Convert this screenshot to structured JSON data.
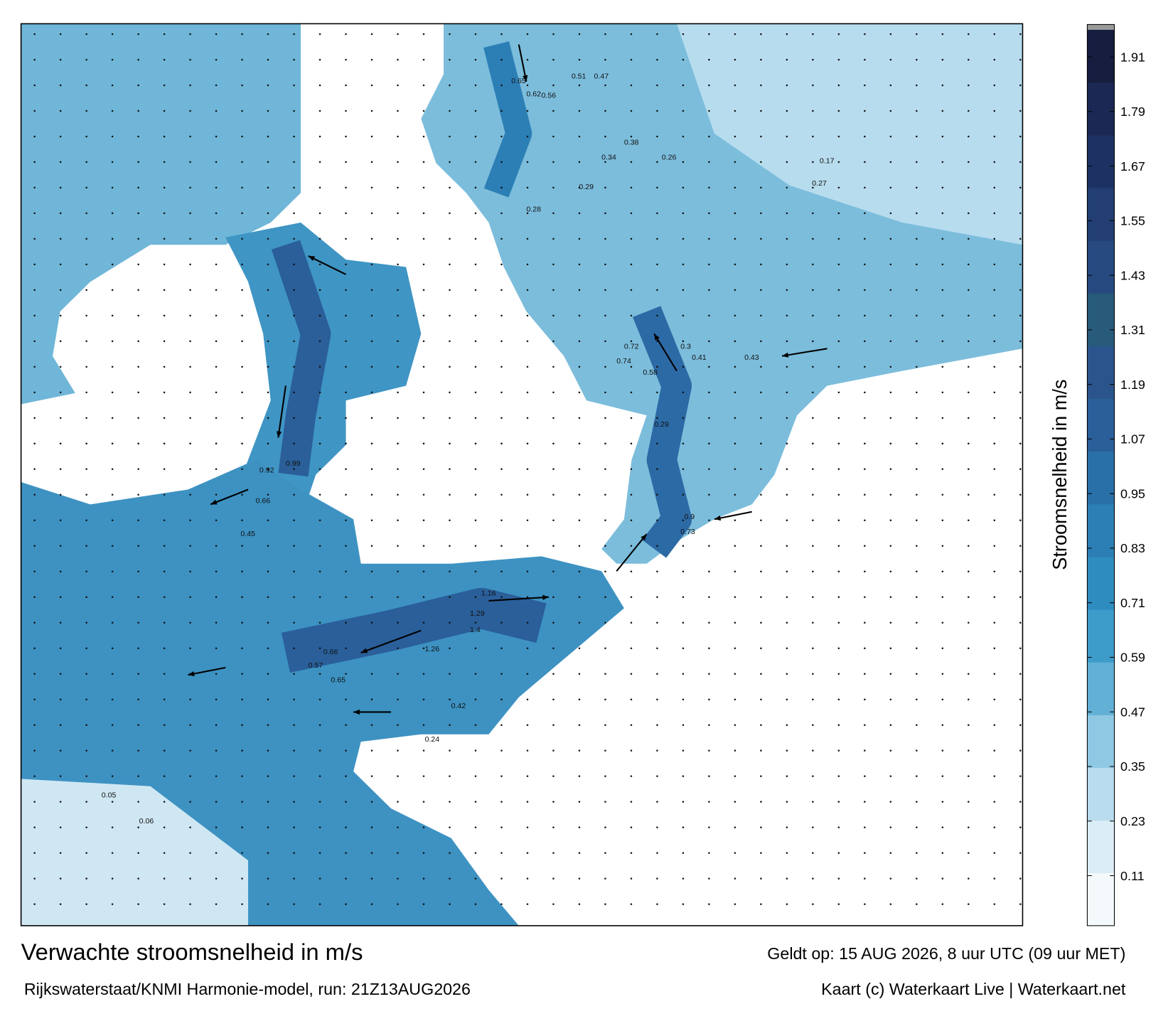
{
  "header": {
    "title": "Verwachte stroomsnelheid in m/s",
    "source": "Rijkswaterstaat/KNMI Harmonie-model, run: 21Z13AUG2026",
    "valid": "Geldt op: 15 AUG 2026, 8 uur UTC (09 uur MET)",
    "credit": "Kaart (c) Waterkaart Live | Waterkaart.net"
  },
  "colorbar": {
    "label": "Stroomsnelheid in m/s",
    "lim": [
      0,
      1.97
    ],
    "ticks": [
      0.11,
      0.23,
      0.35,
      0.47,
      0.59,
      0.71,
      0.83,
      0.95,
      1.07,
      1.19,
      1.31,
      1.43,
      1.55,
      1.67,
      1.79,
      1.91
    ],
    "colors": [
      "#f4f9fc",
      "#dbedf6",
      "#b9dcee",
      "#8fc8e3",
      "#62b0d6",
      "#3e9cca",
      "#2f8cbf",
      "#2c7fb5",
      "#2a70a8",
      "#2a5f9a",
      "#2b548c",
      "#285a7a",
      "#264a80",
      "#223e72",
      "#1d3263",
      "#1a2853",
      "#161d3e"
    ]
  },
  "map_labels": [
    "0.65",
    "0.62",
    "0.56",
    "0.51",
    "0.47",
    "0.34",
    "0.28",
    "0.29",
    "0.99",
    "0.92",
    "0.66",
    "0.45",
    "1.16",
    "1.29",
    "1.4",
    "1.26",
    "0.66",
    "0.57",
    "0.65",
    "0.38",
    "0.26",
    "0.3",
    "0.24",
    "0.43",
    "0.41",
    "0.72",
    "0.74",
    "0.58",
    "0.9",
    "0.73",
    "0.29",
    "0.42",
    "0.27",
    "0.17",
    "0.05",
    "0.06"
  ]
}
